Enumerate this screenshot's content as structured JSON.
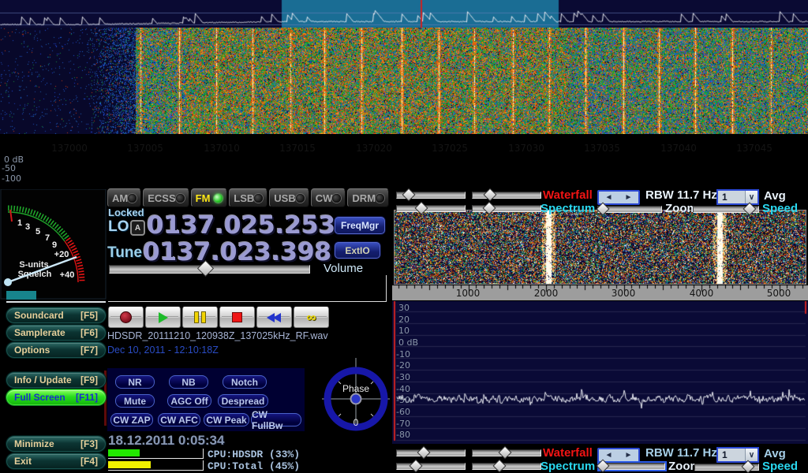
{
  "app": {
    "name": "HDSDR"
  },
  "colors": {
    "accent_red": "#f21414",
    "accent_cyan": "#2ad8ef",
    "led_green": "#2ecc2e",
    "fullscreen_green": "#2ade1d",
    "band_highlight": "#1a6d94",
    "cpu_hdsdr_bar": "#22e800",
    "cpu_total_bar": "#f0f000",
    "tune_marker_red": "#cc2222"
  },
  "rf_display": {
    "freq_labels": [
      "137000",
      "137005",
      "137010",
      "137015",
      "137020",
      "137025",
      "137030",
      "137035",
      "137040",
      "137045"
    ],
    "db_labels": [
      "0 dB",
      "-50",
      "-100"
    ]
  },
  "modes": {
    "items": [
      {
        "label": "AM",
        "active": false
      },
      {
        "label": "ECSS",
        "active": false
      },
      {
        "label": "FM",
        "active": true
      },
      {
        "label": "LSB",
        "active": false
      },
      {
        "label": "USB",
        "active": false
      },
      {
        "label": "CW",
        "active": false
      },
      {
        "label": "DRM",
        "active": false
      }
    ]
  },
  "tuning": {
    "locked_label": "Locked",
    "lo_label": "LO",
    "lo_badge": "A",
    "lo_value": "0137.025.253",
    "tune_label": "Tune",
    "tune_value": "0137.023.398",
    "freqmgr_button": "FreqMgr",
    "extio_button": "ExtIO",
    "volume_label": "Volume"
  },
  "smeter": {
    "labels": [
      "1",
      "3",
      "5",
      "7",
      "9",
      "+20",
      "+40"
    ],
    "caption1": "S-units",
    "caption2": "Squelch"
  },
  "menu": {
    "items": [
      {
        "label": "Soundcard",
        "key": "[F5]"
      },
      {
        "label": "Samplerate",
        "key": "[F6]"
      },
      {
        "label": "Options",
        "key": "[F7]"
      },
      {
        "label": "Info / Update",
        "key": "[F9]"
      },
      {
        "label": "Full Screen",
        "key": "[F11]"
      },
      {
        "label": "Minimize",
        "key": "[F3]"
      },
      {
        "label": "Exit",
        "key": "[F4]"
      }
    ]
  },
  "recorder": {
    "filename": "HDSDR_20111210_120938Z_137025kHz_RF.wav",
    "timestamp": "Dec 10, 2011 - 12:10:18Z"
  },
  "dsp": {
    "nr": "NR",
    "nb": "NB",
    "notch": "Notch",
    "mute": "Mute",
    "agc": "AGC Off",
    "despread": "Despread",
    "cw_zap": "CW ZAP",
    "cw_afc": "CW AFC",
    "cw_peak": "CW Peak",
    "cw_fullbw": "CW FullBw"
  },
  "phase": {
    "label": "Phase",
    "value": "0"
  },
  "status": {
    "datetime": "18.12.2011 0:05:34",
    "cpu_hdsdr_label": "CPU:HDSDR (33%)",
    "cpu_total_label": "CPU:Total (45%)",
    "cpu_hdsdr_pct": 33,
    "cpu_total_pct": 45
  },
  "af_display": {
    "freq_labels": [
      "1000",
      "2000",
      "3000",
      "4000",
      "5000"
    ],
    "db_labels": [
      "30",
      "20",
      "10",
      "0 dB",
      "-10",
      "-20",
      "-30",
      "-40",
      "-50",
      "-60",
      "-70",
      "-80"
    ]
  },
  "panel_controls": {
    "waterfall_label": "Waterfall",
    "spectrum_label": "Spectrum",
    "rbw_label": "RBW 11.7 Hz",
    "zoom_label": "Zoom",
    "avg_label": "Avg",
    "speed_label": "Speed",
    "avg_value": "1",
    "spinner_left": "◄",
    "spinner_right": "►",
    "dropdown_arrow": "∨"
  }
}
